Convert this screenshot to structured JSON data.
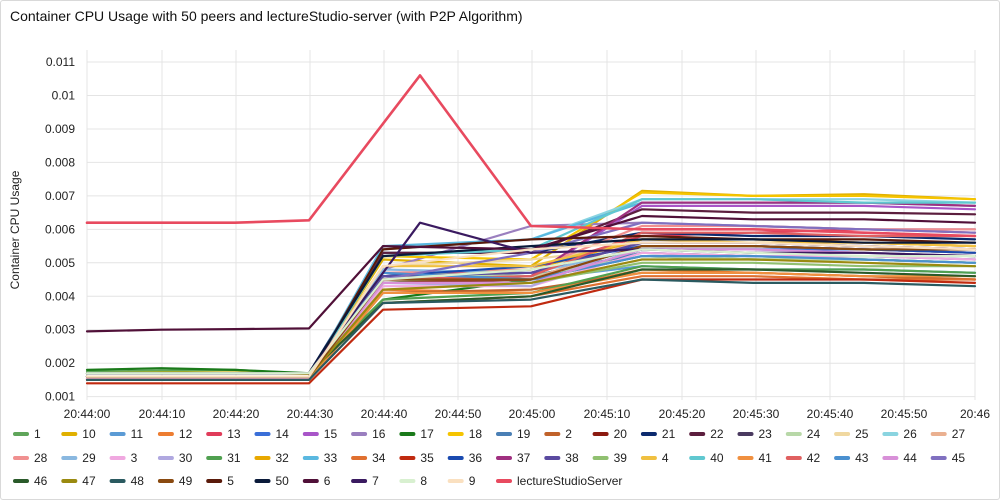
{
  "chart_data": {
    "type": "line",
    "title": "Container CPU Usage with 50 peers and lectureStudio-server (with P2P Algorithm)",
    "ylabel": "Container CPU Usage",
    "xlabel": "",
    "x": [
      "20:44:00",
      "20:44:10",
      "20:44:20",
      "20:44:30",
      "20:44:40",
      "20:44:45",
      "20:45:00",
      "20:45:15",
      "20:45:30",
      "20:45:45",
      "20:46:00"
    ],
    "x_ticks": [
      "20:44:00",
      "20:44:10",
      "20:44:20",
      "20:44:30",
      "20:44:40",
      "20:44:50",
      "20:45:00",
      "20:45:10",
      "20:45:20",
      "20:45:30",
      "20:45:40",
      "20:45:50",
      "20:46"
    ],
    "y_ticks": [
      "0.001",
      "0.002",
      "0.003",
      "0.004",
      "0.005",
      "0.006",
      "0.007",
      "0.008",
      "0.009",
      "0.01",
      "0.011"
    ],
    "ylim": [
      0.0009,
      0.0113
    ],
    "grid": true,
    "legend_position": "bottom",
    "series": [
      {
        "name": "1",
        "color": "#5fa55a",
        "values": [
          0.00175,
          0.00178,
          0.0018,
          0.00168,
          0.0044,
          null,
          0.0046,
          0.0053,
          0.0052,
          0.0051,
          0.005
        ]
      },
      {
        "name": "10",
        "color": "#e0b000",
        "values": [
          0.0017,
          0.00172,
          0.00172,
          0.00168,
          0.0051,
          null,
          0.0049,
          0.00715,
          0.007,
          0.00705,
          0.0069
        ]
      },
      {
        "name": "11",
        "color": "#5b9bd5",
        "values": [
          0.0016,
          0.0016,
          0.00158,
          0.0016,
          0.0047,
          null,
          0.0045,
          0.0049,
          0.0048,
          0.0048,
          0.0047
        ]
      },
      {
        "name": "12",
        "color": "#ed7d31",
        "values": [
          0.0015,
          0.0015,
          0.0015,
          0.0015,
          0.0042,
          null,
          0.0041,
          0.0048,
          0.0047,
          0.0046,
          0.0045
        ]
      },
      {
        "name": "13",
        "color": "#e03c5a",
        "values": [
          0.0016,
          0.0016,
          0.0016,
          0.0016,
          0.0046,
          null,
          0.0048,
          0.0058,
          0.0059,
          0.006,
          0.0059
        ]
      },
      {
        "name": "14",
        "color": "#3a6fd8",
        "values": [
          0.0015,
          0.00152,
          0.00152,
          0.0015,
          0.0044,
          null,
          0.0044,
          0.0054,
          0.0054,
          0.0054,
          0.0053
        ]
      },
      {
        "name": "15",
        "color": "#a855c8",
        "values": [
          0.0016,
          0.0016,
          0.0016,
          0.00158,
          0.0045,
          null,
          0.0046,
          0.0067,
          0.0067,
          0.0067,
          0.0066
        ]
      },
      {
        "name": "16",
        "color": "#9a7fbf",
        "values": [
          0.0017,
          0.0017,
          0.0017,
          0.0017,
          0.0048,
          null,
          0.0061,
          0.0062,
          0.0061,
          0.006,
          0.006
        ]
      },
      {
        "name": "17",
        "color": "#1a7a1a",
        "values": [
          0.0018,
          0.00185,
          0.0018,
          0.0017,
          0.0039,
          null,
          0.0045,
          0.0052,
          0.0051,
          0.0051,
          0.005
        ]
      },
      {
        "name": "18",
        "color": "#f5c400",
        "values": [
          0.0017,
          0.0017,
          0.0017,
          0.0017,
          0.0052,
          null,
          0.0051,
          0.0071,
          0.007,
          0.007,
          0.0069
        ]
      },
      {
        "name": "19",
        "color": "#4a7fb5",
        "values": [
          0.0016,
          0.0016,
          0.0016,
          0.0016,
          0.0047,
          null,
          0.0046,
          0.0053,
          0.0052,
          0.0052,
          0.0051
        ]
      },
      {
        "name": "2",
        "color": "#c0622a",
        "values": [
          0.0015,
          0.0015,
          0.0015,
          0.0015,
          0.0041,
          null,
          0.0042,
          0.0047,
          0.0047,
          0.0046,
          0.0045
        ]
      },
      {
        "name": "20",
        "color": "#8b1a10",
        "values": [
          0.00155,
          0.00155,
          0.00155,
          0.00155,
          0.0044,
          null,
          0.0045,
          0.0055,
          0.0055,
          0.0054,
          0.0053
        ]
      },
      {
        "name": "21",
        "color": "#0c2a6e",
        "values": [
          0.0017,
          0.0017,
          0.0017,
          0.0017,
          0.0053,
          null,
          0.0053,
          0.0059,
          0.0058,
          0.0058,
          0.0057
        ]
      },
      {
        "name": "22",
        "color": "#5c1e3e",
        "values": [
          0.0016,
          0.0016,
          0.0016,
          0.0016,
          0.0053,
          null,
          0.0053,
          0.0066,
          0.0065,
          0.0065,
          0.00645
        ]
      },
      {
        "name": "23",
        "color": "#4a3a60",
        "values": [
          0.0016,
          0.0016,
          0.0016,
          0.0016,
          0.0046,
          null,
          0.0047,
          0.0056,
          0.0056,
          0.0055,
          0.0054
        ]
      },
      {
        "name": "24",
        "color": "#b8d8a8",
        "values": [
          0.0017,
          0.0017,
          0.0017,
          0.0017,
          0.0047,
          null,
          0.0046,
          0.0052,
          0.0051,
          0.0051,
          0.005
        ]
      },
      {
        "name": "25",
        "color": "#f0d8a0",
        "values": [
          0.0016,
          0.0016,
          0.0016,
          0.0016,
          0.0049,
          null,
          0.0051,
          0.0055,
          0.0055,
          0.0054,
          0.0053
        ]
      },
      {
        "name": "26",
        "color": "#8ad4e0",
        "values": [
          0.0016,
          0.0016,
          0.0016,
          0.0016,
          0.0054,
          null,
          0.0057,
          0.0069,
          0.0069,
          0.0069,
          0.0068
        ]
      },
      {
        "name": "27",
        "color": "#eab090",
        "values": [
          0.0016,
          0.0016,
          0.0016,
          0.0016,
          0.0045,
          null,
          0.0045,
          0.0057,
          0.0057,
          0.0056,
          0.0055
        ]
      },
      {
        "name": "28",
        "color": "#f09090",
        "values": [
          0.0016,
          0.0016,
          0.0016,
          0.0016,
          0.0047,
          null,
          0.0048,
          0.0061,
          0.0061,
          0.006,
          0.006
        ]
      },
      {
        "name": "29",
        "color": "#8ab8e0",
        "values": [
          0.0016,
          0.0016,
          0.0016,
          0.0016,
          0.0048,
          null,
          0.0047,
          0.0054,
          0.0054,
          0.0053,
          0.0052
        ]
      },
      {
        "name": "3",
        "color": "#f0a8e0",
        "values": [
          0.00155,
          0.00155,
          0.00155,
          0.00155,
          0.0043,
          null,
          0.0043,
          0.0053,
          0.0052,
          0.0052,
          0.0051
        ]
      },
      {
        "name": "30",
        "color": "#b0a8e0",
        "values": [
          0.0016,
          0.0016,
          0.0016,
          0.0016,
          0.0044,
          null,
          0.0043,
          0.0056,
          0.0056,
          0.0055,
          0.0054
        ]
      },
      {
        "name": "31",
        "color": "#50a050",
        "values": [
          0.0017,
          0.0017,
          0.0017,
          0.0017,
          0.0039,
          null,
          0.0041,
          0.0049,
          0.0048,
          0.0048,
          0.0047
        ]
      },
      {
        "name": "32",
        "color": "#e8a800",
        "values": [
          0.0016,
          0.0016,
          0.0016,
          0.0016,
          0.0045,
          null,
          0.0048,
          0.0057,
          0.0057,
          0.0056,
          0.0055
        ]
      },
      {
        "name": "33",
        "color": "#5ab8e0",
        "values": [
          0.0016,
          0.0016,
          0.0016,
          0.0016,
          0.0055,
          null,
          0.0057,
          0.0068,
          0.0068,
          0.0068,
          0.0067
        ]
      },
      {
        "name": "34",
        "color": "#e07030",
        "values": [
          0.0015,
          0.0015,
          0.0015,
          0.0015,
          0.0038,
          null,
          0.004,
          0.0046,
          0.0046,
          0.0045,
          0.0045
        ]
      },
      {
        "name": "35",
        "color": "#c02a10",
        "values": [
          0.0014,
          0.0014,
          0.0014,
          0.0014,
          0.0036,
          null,
          0.0037,
          0.0045,
          0.0045,
          0.0045,
          0.0044
        ]
      },
      {
        "name": "36",
        "color": "#1a4ab0",
        "values": [
          0.0016,
          0.0016,
          0.0016,
          0.0016,
          0.0046,
          null,
          0.0049,
          0.0055,
          0.0055,
          0.0054,
          0.0053
        ]
      },
      {
        "name": "37",
        "color": "#a03080",
        "values": [
          0.0016,
          0.0016,
          0.0016,
          0.0016,
          0.0045,
          null,
          0.0046,
          0.0068,
          0.0068,
          0.0068,
          0.0067
        ]
      },
      {
        "name": "38",
        "color": "#5a4aa0",
        "values": [
          0.0016,
          0.0016,
          0.0016,
          0.0016,
          0.0046,
          null,
          0.0047,
          0.0056,
          0.0056,
          0.0055,
          0.0054
        ]
      },
      {
        "name": "39",
        "color": "#90c070",
        "values": [
          0.0017,
          0.0017,
          0.0017,
          0.0017,
          0.0044,
          null,
          0.0044,
          0.005,
          0.005,
          0.0049,
          0.0049
        ]
      },
      {
        "name": "4",
        "color": "#f0c040",
        "values": [
          0.0017,
          0.0017,
          0.0017,
          0.0017,
          0.0049,
          null,
          0.0049,
          0.0057,
          0.0056,
          0.0056,
          0.0055
        ]
      },
      {
        "name": "40",
        "color": "#60c8d0",
        "values": [
          0.0016,
          0.0016,
          0.0016,
          0.0016,
          0.0052,
          null,
          0.0054,
          0.0069,
          0.0069,
          0.0068,
          0.0068
        ]
      },
      {
        "name": "41",
        "color": "#f09040",
        "values": [
          0.0015,
          0.0015,
          0.0015,
          0.0015,
          0.0041,
          null,
          0.0041,
          0.0047,
          0.0047,
          0.0046,
          0.0046
        ]
      },
      {
        "name": "42",
        "color": "#e06060",
        "values": [
          0.0016,
          0.0016,
          0.0016,
          0.0016,
          0.0045,
          null,
          0.0046,
          0.0059,
          0.0059,
          0.0058,
          0.0058
        ]
      },
      {
        "name": "43",
        "color": "#4a90d0",
        "values": [
          0.0016,
          0.0016,
          0.0016,
          0.0016,
          0.0047,
          null,
          0.0045,
          0.0052,
          0.0052,
          0.0051,
          0.005
        ]
      },
      {
        "name": "44",
        "color": "#d890d8",
        "values": [
          0.0016,
          0.0016,
          0.0016,
          0.0016,
          0.0044,
          null,
          0.0044,
          0.0054,
          0.0054,
          0.0053,
          0.0052
        ]
      },
      {
        "name": "45",
        "color": "#8070c0",
        "values": [
          0.0016,
          0.0016,
          0.0016,
          0.0016,
          0.0045,
          null,
          0.0053,
          0.0062,
          0.0061,
          0.006,
          0.0059
        ]
      },
      {
        "name": "46",
        "color": "#2a5a2a",
        "values": [
          0.0017,
          0.0017,
          0.0017,
          0.0017,
          0.0038,
          null,
          0.004,
          0.0048,
          0.0048,
          0.0047,
          0.0046
        ]
      },
      {
        "name": "47",
        "color": "#9a8a10",
        "values": [
          0.0016,
          0.0016,
          0.0016,
          0.0016,
          0.0042,
          null,
          0.0044,
          0.0051,
          0.0051,
          0.005,
          0.0049
        ]
      },
      {
        "name": "48",
        "color": "#2a5a60",
        "values": [
          0.0015,
          0.0015,
          0.0015,
          0.0015,
          0.0038,
          null,
          0.0039,
          0.0045,
          0.0044,
          0.0044,
          0.0043
        ]
      },
      {
        "name": "49",
        "color": "#8a4a10",
        "values": [
          0.0016,
          0.0016,
          0.0016,
          0.0016,
          0.0045,
          null,
          0.0045,
          0.0055,
          0.0055,
          0.0054,
          0.0054
        ]
      },
      {
        "name": "5",
        "color": "#5a1a0a",
        "values": [
          0.0016,
          0.0016,
          0.0016,
          0.0016,
          0.0054,
          null,
          0.0057,
          0.0058,
          0.0057,
          0.0057,
          0.0056
        ]
      },
      {
        "name": "50",
        "color": "#0a1a3a",
        "values": [
          0.0017,
          0.0017,
          0.0017,
          0.0017,
          0.0052,
          null,
          0.0055,
          0.0057,
          0.0057,
          0.0056,
          0.0056
        ]
      },
      {
        "name": "6",
        "color": "#501038",
        "values": [
          0.00295,
          0.003,
          0.00302,
          0.00304,
          0.0055,
          null,
          0.0054,
          0.0064,
          0.0063,
          0.0063,
          0.0062
        ]
      },
      {
        "name": "7",
        "color": "#3a1a60",
        "values": [
          0.0017,
          0.0017,
          0.0017,
          0.0017,
          null,
          0.0062,
          0.0053,
          0.0054,
          0.0053,
          0.0053,
          0.0052
        ]
      },
      {
        "name": "8",
        "color": "#d8f0d0",
        "values": [
          0.0017,
          0.0017,
          0.0017,
          0.0017,
          0.0045,
          null,
          0.0048,
          0.0054,
          0.0053,
          0.0052,
          0.0052
        ]
      },
      {
        "name": "9",
        "color": "#fae0c0",
        "values": [
          0.0016,
          0.0016,
          0.0016,
          0.0016,
          0.0049,
          null,
          0.0054,
          0.0056,
          0.0056,
          0.0055,
          0.0054
        ]
      },
      {
        "name": "lectureStudioServer",
        "color": "#e84a5f",
        "values": [
          0.0062,
          0.0062,
          0.0062,
          0.00627,
          null,
          0.0106,
          0.0061,
          0.006,
          0.006,
          0.0059,
          0.0058
        ]
      }
    ]
  }
}
